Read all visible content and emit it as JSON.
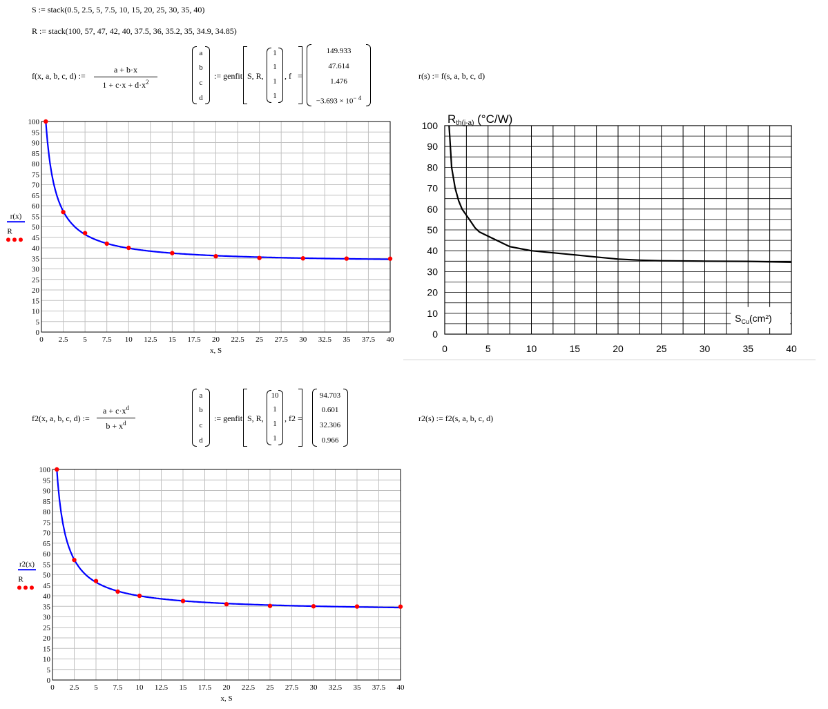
{
  "worksheet": {
    "S_def": "S := stack(0.5, 2.5, 5, 7.5, 10, 15, 20, 25, 30, 35, 40)",
    "R_def": "R := stack(100, 57, 47, 42, 40, 37.5, 36, 35.2, 35, 34.9, 34.85)",
    "f_lhs": "f(x, a, b, c, d) :=",
    "f_num": "a + b·x",
    "f_den": "1 + c·x + d·x",
    "f_den_sup": "2",
    "params": [
      "a",
      "b",
      "c",
      "d"
    ],
    "assign_genfit": ":= genfit",
    "genfit_args": "S, R,",
    "guess_f": [
      "1",
      "1",
      "1",
      "1"
    ],
    "fname_f": ", f",
    "eq": "=",
    "result_f": [
      "149.933",
      "47.614",
      "1.476",
      "−3.693 × 10"
    ],
    "result_f_exp": "− 4",
    "r_def": "r(s) := f(s, a, b, c, d)",
    "f2_lhs": "f2(x, a, b, c, d) :=",
    "f2_num": "a + c·x",
    "f2_num_sup": "d",
    "f2_den": "b + x",
    "f2_den_sup": "d",
    "guess_f2": [
      "10",
      "1",
      "1",
      "1"
    ],
    "fname_f2": ", f2",
    "result_f2": [
      "94.703",
      "0.601",
      "32.306",
      "0.966"
    ],
    "r2_def": "r2(s) := f2(s, a, b, c, d)"
  },
  "chart_data": [
    {
      "type": "line",
      "xlabel": "x, S",
      "legend": [
        {
          "name": "r(x)",
          "color": "#0000ff",
          "style": "line"
        },
        {
          "name": "R",
          "color": "#ff0000",
          "style": "points"
        }
      ],
      "xlim": [
        0,
        40
      ],
      "ylim": [
        0,
        100
      ],
      "xticks": [
        "0",
        "2.5",
        "5",
        "7.5",
        "10",
        "12.5",
        "15",
        "17.5",
        "20",
        "22.5",
        "25",
        "27.5",
        "30",
        "32.5",
        "35",
        "37.5",
        "40"
      ],
      "yticks": [
        "0",
        "5",
        "10",
        "15",
        "20",
        "25",
        "30",
        "35",
        "40",
        "45",
        "50",
        "55",
        "60",
        "65",
        "70",
        "75",
        "80",
        "85",
        "90",
        "95",
        "100"
      ],
      "grid": true,
      "points": {
        "x": [
          0.5,
          2.5,
          5,
          7.5,
          10,
          15,
          20,
          25,
          30,
          35,
          40
        ],
        "y": [
          100,
          57,
          47,
          42,
          40,
          37.5,
          36,
          35.2,
          35,
          34.9,
          34.85
        ]
      },
      "fit": {
        "model": "f",
        "a": 149.933,
        "b": 47.614,
        "c": 1.476,
        "d": -0.0003693
      }
    },
    {
      "type": "line",
      "title": "R",
      "title_sub": "th(j-a)",
      "title_unit": " (°C/W)",
      "xlabel": "S",
      "xlabel_sub": "Cu",
      "xlabel_unit": "(cm²)",
      "xlim": [
        0,
        40
      ],
      "ylim": [
        0,
        100
      ],
      "xticks": [
        "0",
        "5",
        "10",
        "15",
        "20",
        "25",
        "30",
        "35",
        "40"
      ],
      "yticks": [
        "0",
        "10",
        "20",
        "30",
        "40",
        "50",
        "60",
        "70",
        "80",
        "90",
        "100"
      ],
      "grid": true,
      "curve": {
        "x": [
          0.5,
          0.8,
          1.2,
          1.6,
          2,
          2.5,
          3,
          3.5,
          4,
          5,
          6,
          7.5,
          10,
          12.5,
          15,
          17.5,
          20,
          22.5,
          25,
          30,
          35,
          40
        ],
        "y": [
          100,
          80,
          70,
          64,
          60,
          57,
          54,
          51,
          49,
          47,
          45,
          42,
          40,
          39,
          38,
          37,
          36,
          35.5,
          35.2,
          35,
          34.9,
          34.5
        ]
      }
    },
    {
      "type": "line",
      "xlabel": "x, S",
      "legend": [
        {
          "name": "r2(x)",
          "color": "#0000ff",
          "style": "line"
        },
        {
          "name": "R",
          "color": "#ff0000",
          "style": "points"
        }
      ],
      "xlim": [
        0,
        40
      ],
      "ylim": [
        0,
        100
      ],
      "xticks": [
        "0",
        "2.5",
        "5",
        "7.5",
        "10",
        "12.5",
        "15",
        "17.5",
        "20",
        "22.5",
        "25",
        "27.5",
        "30",
        "32.5",
        "35",
        "37.5",
        "40"
      ],
      "yticks": [
        "0",
        "5",
        "10",
        "15",
        "20",
        "25",
        "30",
        "35",
        "40",
        "45",
        "50",
        "55",
        "60",
        "65",
        "70",
        "75",
        "80",
        "85",
        "90",
        "95",
        "100"
      ],
      "grid": true,
      "points": {
        "x": [
          0.5,
          2.5,
          5,
          7.5,
          10,
          15,
          20,
          25,
          30,
          35,
          40
        ],
        "y": [
          100,
          57,
          47,
          42,
          40,
          37.5,
          36,
          35.2,
          35,
          34.9,
          34.85
        ]
      },
      "fit": {
        "model": "f2",
        "a": 94.703,
        "b": 0.601,
        "c": 32.306,
        "d": 0.966
      }
    }
  ]
}
